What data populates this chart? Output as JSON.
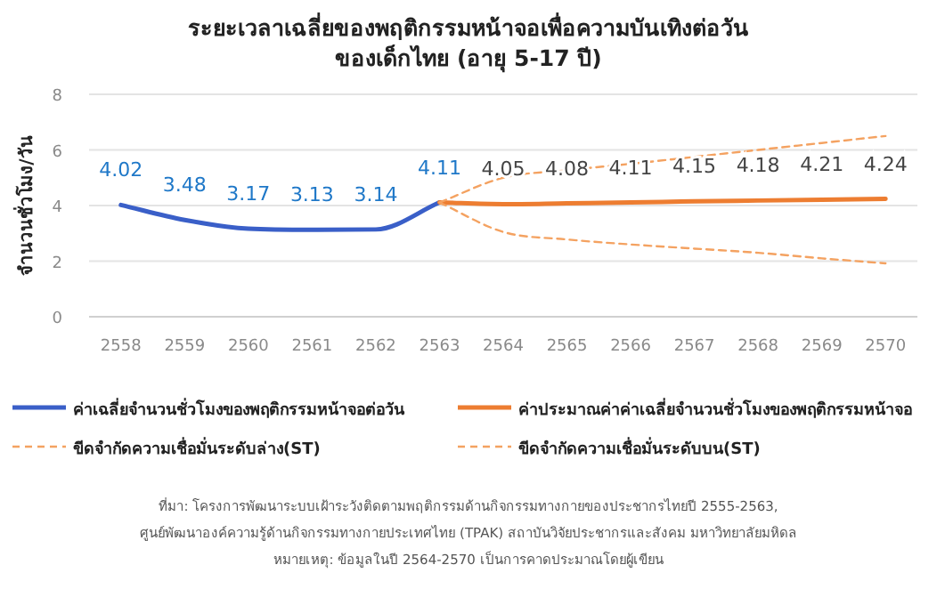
{
  "chart_data": {
    "type": "line",
    "title": "ระยะเวลาเฉลี่ยของพฤติกรรมหน้าจอเพื่อความบันเทิงต่อวัน\nของเด็กไทย (อายุ 5-17 ปี)",
    "ylabel": "จำนวนชั่วโมง/วัน",
    "categories": [
      "2558",
      "2559",
      "2560",
      "2561",
      "2562",
      "2563",
      "2564",
      "2565",
      "2566",
      "2567",
      "2568",
      "2569",
      "2570"
    ],
    "series": [
      {
        "name": "ค่าเฉลี่ยจำนวนชั่วโมงของพฤติกรรมหน้าจอต่อวัน",
        "color": "#3a5fc8",
        "values": [
          4.02,
          3.48,
          3.17,
          3.13,
          3.14,
          4.11,
          null,
          null,
          null,
          null,
          null,
          null,
          null
        ],
        "value_labels": [
          "4.02",
          "3.48",
          "3.17",
          "3.13",
          "3.14",
          "4.11",
          null,
          null,
          null,
          null,
          null,
          null,
          null
        ]
      },
      {
        "name": "ค่าประมาณค่าค่าเฉลี่ยจำนวนชั่วโมงของพฤติกรรมหน้าจอ",
        "color": "#ed7d31",
        "values": [
          null,
          null,
          null,
          null,
          null,
          4.11,
          4.05,
          4.08,
          4.11,
          4.15,
          4.18,
          4.21,
          4.24
        ],
        "value_labels": [
          null,
          null,
          null,
          null,
          null,
          null,
          "4.05",
          "4.08",
          "4.11",
          "4.15",
          "4.18",
          "4.21",
          "4.24"
        ]
      },
      {
        "name": "ขีดจำกัดความเชื่อมั่นระดับล่าง(ST)",
        "color": "#f4a261",
        "line_style": "dashed",
        "values": [
          null,
          null,
          null,
          null,
          null,
          4.11,
          3.05,
          2.78,
          2.6,
          2.45,
          2.3,
          2.1,
          1.92
        ]
      },
      {
        "name": "ขีดจำกัดความเชื่อมั่นระดับบน(ST)",
        "color": "#f4a261",
        "line_style": "dashed",
        "values": [
          null,
          null,
          null,
          null,
          null,
          4.11,
          5.0,
          5.27,
          5.5,
          5.75,
          6.0,
          6.25,
          6.5
        ]
      }
    ],
    "ylim": [
      0,
      8
    ],
    "yticks": [
      0,
      2,
      4,
      6,
      8
    ],
    "grid": "y",
    "legend": "bottom",
    "marker": "none",
    "annotations": [
      "ที่มา: โครงการพัฒนาระบบเฝ้าระวังติดตามพฤติกรรมด้านกิจกรรมทางกายของประชากรไทยปี 2555-2563,",
      "ศูนย์พัฒนาองค์ความรู้ด้านกิจกรรมทางกายประเทศไทย (TPAK) สถาบันวิจัยประชากรและสังคม มหาวิทยาลัยมหิดล",
      "หมายเหตุ: ข้อมูลในปี 2564-2570 เป็นการคาดประมาณโดยผู้เขียน"
    ]
  }
}
